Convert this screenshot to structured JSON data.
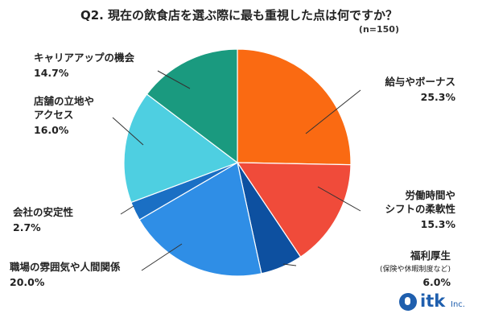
{
  "chart_data": {
    "type": "pie",
    "title": "Q2. 現在の飲食店を選ぶ際に最も重視した点は何ですか？",
    "subtitle": "(n=150)",
    "slices": [
      {
        "label": [
          "給与やボーナス"
        ],
        "value": 25.3,
        "display": "25.3%",
        "color": "#fa6a12"
      },
      {
        "label": [
          "労働時間や",
          "シフトの柔軟性"
        ],
        "value": 15.3,
        "display": "15.3%",
        "color": "#f04b3a"
      },
      {
        "label": [
          "福利厚生"
        ],
        "note": "(保険や休暇制度など)",
        "value": 6.0,
        "display": "6.0%",
        "color": "#0d50a0"
      },
      {
        "label": [
          "職場の雰囲気や人間関係"
        ],
        "value": 20.0,
        "display": "20.0%",
        "color": "#2f8ee6"
      },
      {
        "label": [
          "会社の安定性"
        ],
        "value": 2.7,
        "display": "2.7%",
        "color": "#1a6fc4"
      },
      {
        "label": [
          "店舗の立地や",
          "アクセス"
        ],
        "value": 16.0,
        "display": "16.0%",
        "color": "#4ecfe1"
      },
      {
        "label": [
          "キャリアアップの機会"
        ],
        "value": 14.7,
        "display": "14.7%",
        "color": "#1a9a7f"
      }
    ]
  },
  "logo": {
    "text": "itk",
    "suffix": "Inc."
  }
}
